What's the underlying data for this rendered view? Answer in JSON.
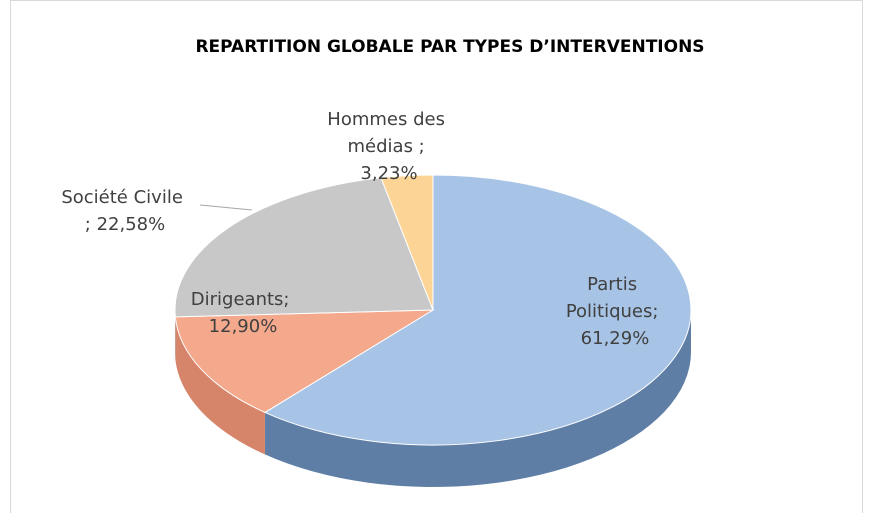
{
  "chart_data": {
    "type": "pie",
    "title": "REPARTITION GLOBALE PAR TYPES D’INTERVENTIONS",
    "values": [
      61.29,
      12.9,
      22.58,
      3.23
    ],
    "value_labels": [
      "Partis Politiques; 61,29%",
      "Dirigeants; 12,90%",
      "Société Civile ; 22,58%",
      "Hommes des médias ; 3,23%"
    ],
    "colors": [
      "#a7c3e6",
      "#f4a98c",
      "#c8c8c8",
      "#fcd596"
    ],
    "side_colors": [
      "#5f7ea6",
      "#d6856a",
      "#a6a6a6",
      "#e0b671"
    ]
  }
}
